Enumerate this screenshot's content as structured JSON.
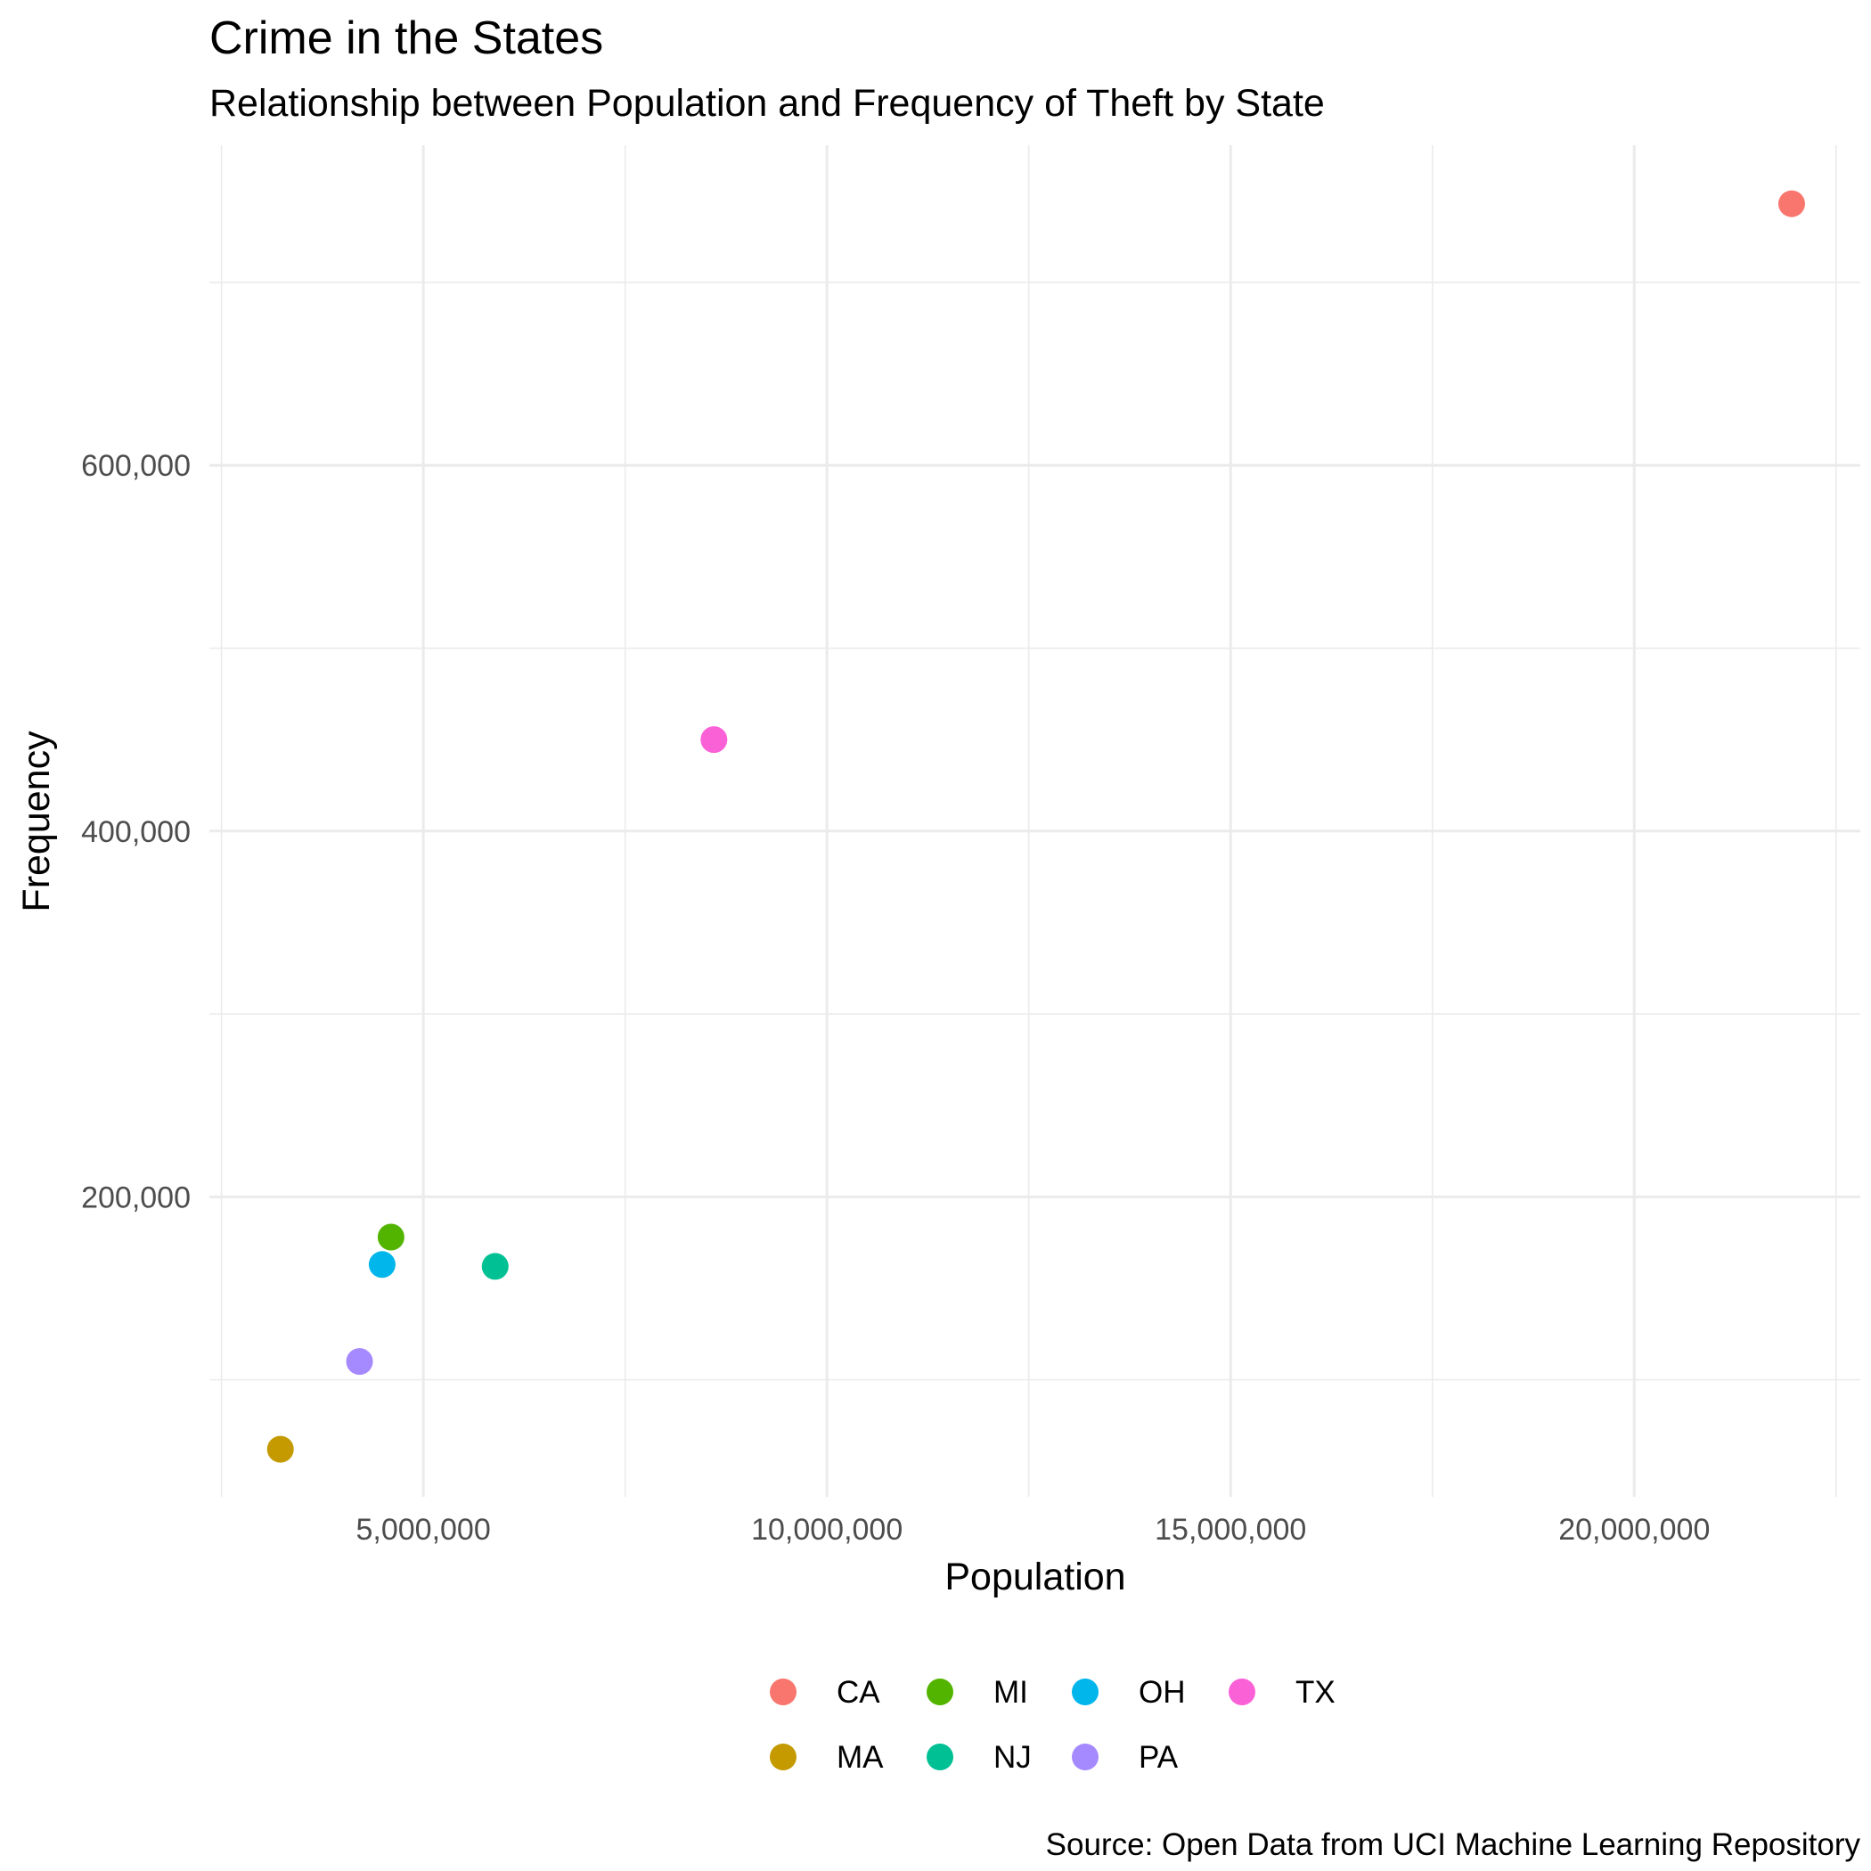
{
  "chart_data": {
    "type": "scatter",
    "title": "Crime in the States",
    "subtitle": "Relationship between Population and Frequency of Theft by State",
    "xlabel": "Population",
    "ylabel": "Frequency",
    "caption": "Source: Open Data from UCI Machine Learning Repository",
    "xlim": [
      2350000,
      22800000
    ],
    "ylim": [
      36000,
      775000
    ],
    "x_ticks": [
      5000000,
      10000000,
      15000000,
      20000000
    ],
    "x_tick_labels": [
      "5,000,000",
      "10,000,000",
      "15,000,000",
      "20,000,000"
    ],
    "x_minor_ticks": [
      2500000,
      7500000,
      12500000,
      17500000,
      22500000
    ],
    "y_ticks": [
      200000,
      400000,
      600000
    ],
    "y_tick_labels": [
      "200,000",
      "400,000",
      "600,000"
    ],
    "y_minor_ticks": [
      100000,
      300000,
      500000,
      700000
    ],
    "grid": true,
    "legend_position": "bottom",
    "series": [
      {
        "name": "CA",
        "color": "#F8766D",
        "x": 21950000,
        "y": 743000
      },
      {
        "name": "MA",
        "color": "#C49A00",
        "x": 3230000,
        "y": 62000
      },
      {
        "name": "MI",
        "color": "#53B400",
        "x": 4600000,
        "y": 178000
      },
      {
        "name": "NJ",
        "color": "#00C094",
        "x": 5890000,
        "y": 162000
      },
      {
        "name": "OH",
        "color": "#00B6EB",
        "x": 4490000,
        "y": 163000
      },
      {
        "name": "PA",
        "color": "#A58AFF",
        "x": 4210000,
        "y": 110000
      },
      {
        "name": "TX",
        "color": "#FB61D7",
        "x": 8600000,
        "y": 450000
      }
    ]
  }
}
